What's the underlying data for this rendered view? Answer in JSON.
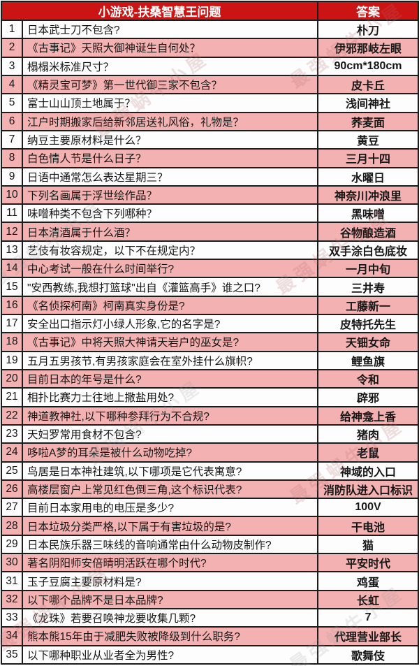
{
  "colors": {
    "header_bg": "#cc1414",
    "header_text": "#ffffff",
    "row_pink": "#f4b1b1",
    "row_white": "#fdfdfd",
    "border": "#1c1c1c",
    "body_text": "#161616"
  },
  "watermark": {
    "text": "最强蜗牛小屋"
  },
  "table": {
    "header": {
      "title": "小游戏-扶桑智慧王问题",
      "answer_label": "答案"
    },
    "rows": [
      {
        "n": "1",
        "q": "日本武士刀不包含?",
        "a": "朴刀"
      },
      {
        "n": "2",
        "q": "《古事记》天照大御神诞生自何处？",
        "a": "伊邪那岐左眼"
      },
      {
        "n": "3",
        "q": "榻榻米标准尺寸？",
        "a": "90cm*180cm"
      },
      {
        "n": "4",
        "q": "《精灵宝可梦》第一世代御三家不包含？",
        "a": "皮卡丘"
      },
      {
        "n": "5",
        "q": "富士山山顶土地属于？",
        "a": "浅间神社"
      },
      {
        "n": "6",
        "q": "江户时期搬家后给新邻居送礼风俗，礼物是？",
        "a": "荞麦面"
      },
      {
        "n": "7",
        "q": "纳豆主要原材料是什么？",
        "a": "黄豆"
      },
      {
        "n": "8",
        "q": "白色情人节是什么日子？",
        "a": "三月十四"
      },
      {
        "n": "9",
        "q": "日语中通常怎么表达星期三？",
        "a": "水曜日"
      },
      {
        "n": "10",
        "q": "下列名画属于浮世绘作品？",
        "a": "神奈川冲浪里"
      },
      {
        "n": "11",
        "q": "味噌种类不包含下列哪种？",
        "a": "黑味噌"
      },
      {
        "n": "12",
        "q": "日本清酒属于什么酒？",
        "a": "谷物酿造酒"
      },
      {
        "n": "13",
        "q": "艺伎有妆容规定，以下不在规定内？",
        "a": "双手涂白色底妆"
      },
      {
        "n": "14",
        "q": "中心考试一般在什么时间举行?",
        "a": "一月中旬"
      },
      {
        "n": "15",
        "q": "\"安西教练,我想打篮球\"出自《灌篮高手》谁之口?",
        "a": "三井寿"
      },
      {
        "n": "16",
        "q": "《名侦探柯南》柯南真实身份是?",
        "a": "工藤新一"
      },
      {
        "n": "17",
        "q": "安全出口指示灯小绿人形象,它的名字是?",
        "a": "皮特托先生"
      },
      {
        "n": "18",
        "q": "《古事记》中将天照大神请天岩户的巫女是?",
        "a": "天钿女命"
      },
      {
        "n": "19",
        "q": "五月五男孩节,有男孩家庭会在室外挂什么旗帜?",
        "a": "鲤鱼旗"
      },
      {
        "n": "20",
        "q": "目前日本的年号是什么?",
        "a": "令和"
      },
      {
        "n": "21",
        "q": "相扑比赛力士往地上撒盐用处?",
        "a": "辟邪"
      },
      {
        "n": "22",
        "q": "神道教神社,以下哪种参拜行为不合规?",
        "a": "给神龛上香"
      },
      {
        "n": "23",
        "q": "天妇罗常用食材不包含?",
        "a": "猪肉"
      },
      {
        "n": "24",
        "q": "哆啦A梦的耳朵是被什么动物吃掉?",
        "a": "老鼠"
      },
      {
        "n": "25",
        "q": "鸟居是日本神社建筑,以下哪项是它代表寓意?",
        "a": "神域的入口"
      },
      {
        "n": "26",
        "q": "高楼层窗户上常见红色倒三角,这个标识代表?",
        "a": "消防队进入口标识"
      },
      {
        "n": "27",
        "q": "目前日本家用电的电压是多少?",
        "a": "100V"
      },
      {
        "n": "28",
        "q": "日本垃圾分类严格,以下属于有害垃圾的是?",
        "a": "干电池"
      },
      {
        "n": "29",
        "q": "日本民族乐器三味线的音响通常由什么动物皮制作?",
        "a": "猫"
      },
      {
        "n": "30",
        "q": "著名阴阳师安倍晴明活跃在哪个时代?",
        "a": "平安时代"
      },
      {
        "n": "31",
        "q": "玉子豆腐主要原材料是?",
        "a": "鸡蛋"
      },
      {
        "n": "32",
        "q": "以下哪个品牌不是日本品牌?",
        "a": "长虹"
      },
      {
        "n": "33",
        "q": "《龙珠》若要召唤神龙要收集几颗?",
        "a": "7"
      },
      {
        "n": "34",
        "q": "熊本熊15年由于减肥失败被降级到什么职务?",
        "a": "代理营业部长"
      },
      {
        "n": "35",
        "q": "以下哪种职业从业者全为男性?",
        "a": "歌舞伎"
      }
    ]
  }
}
